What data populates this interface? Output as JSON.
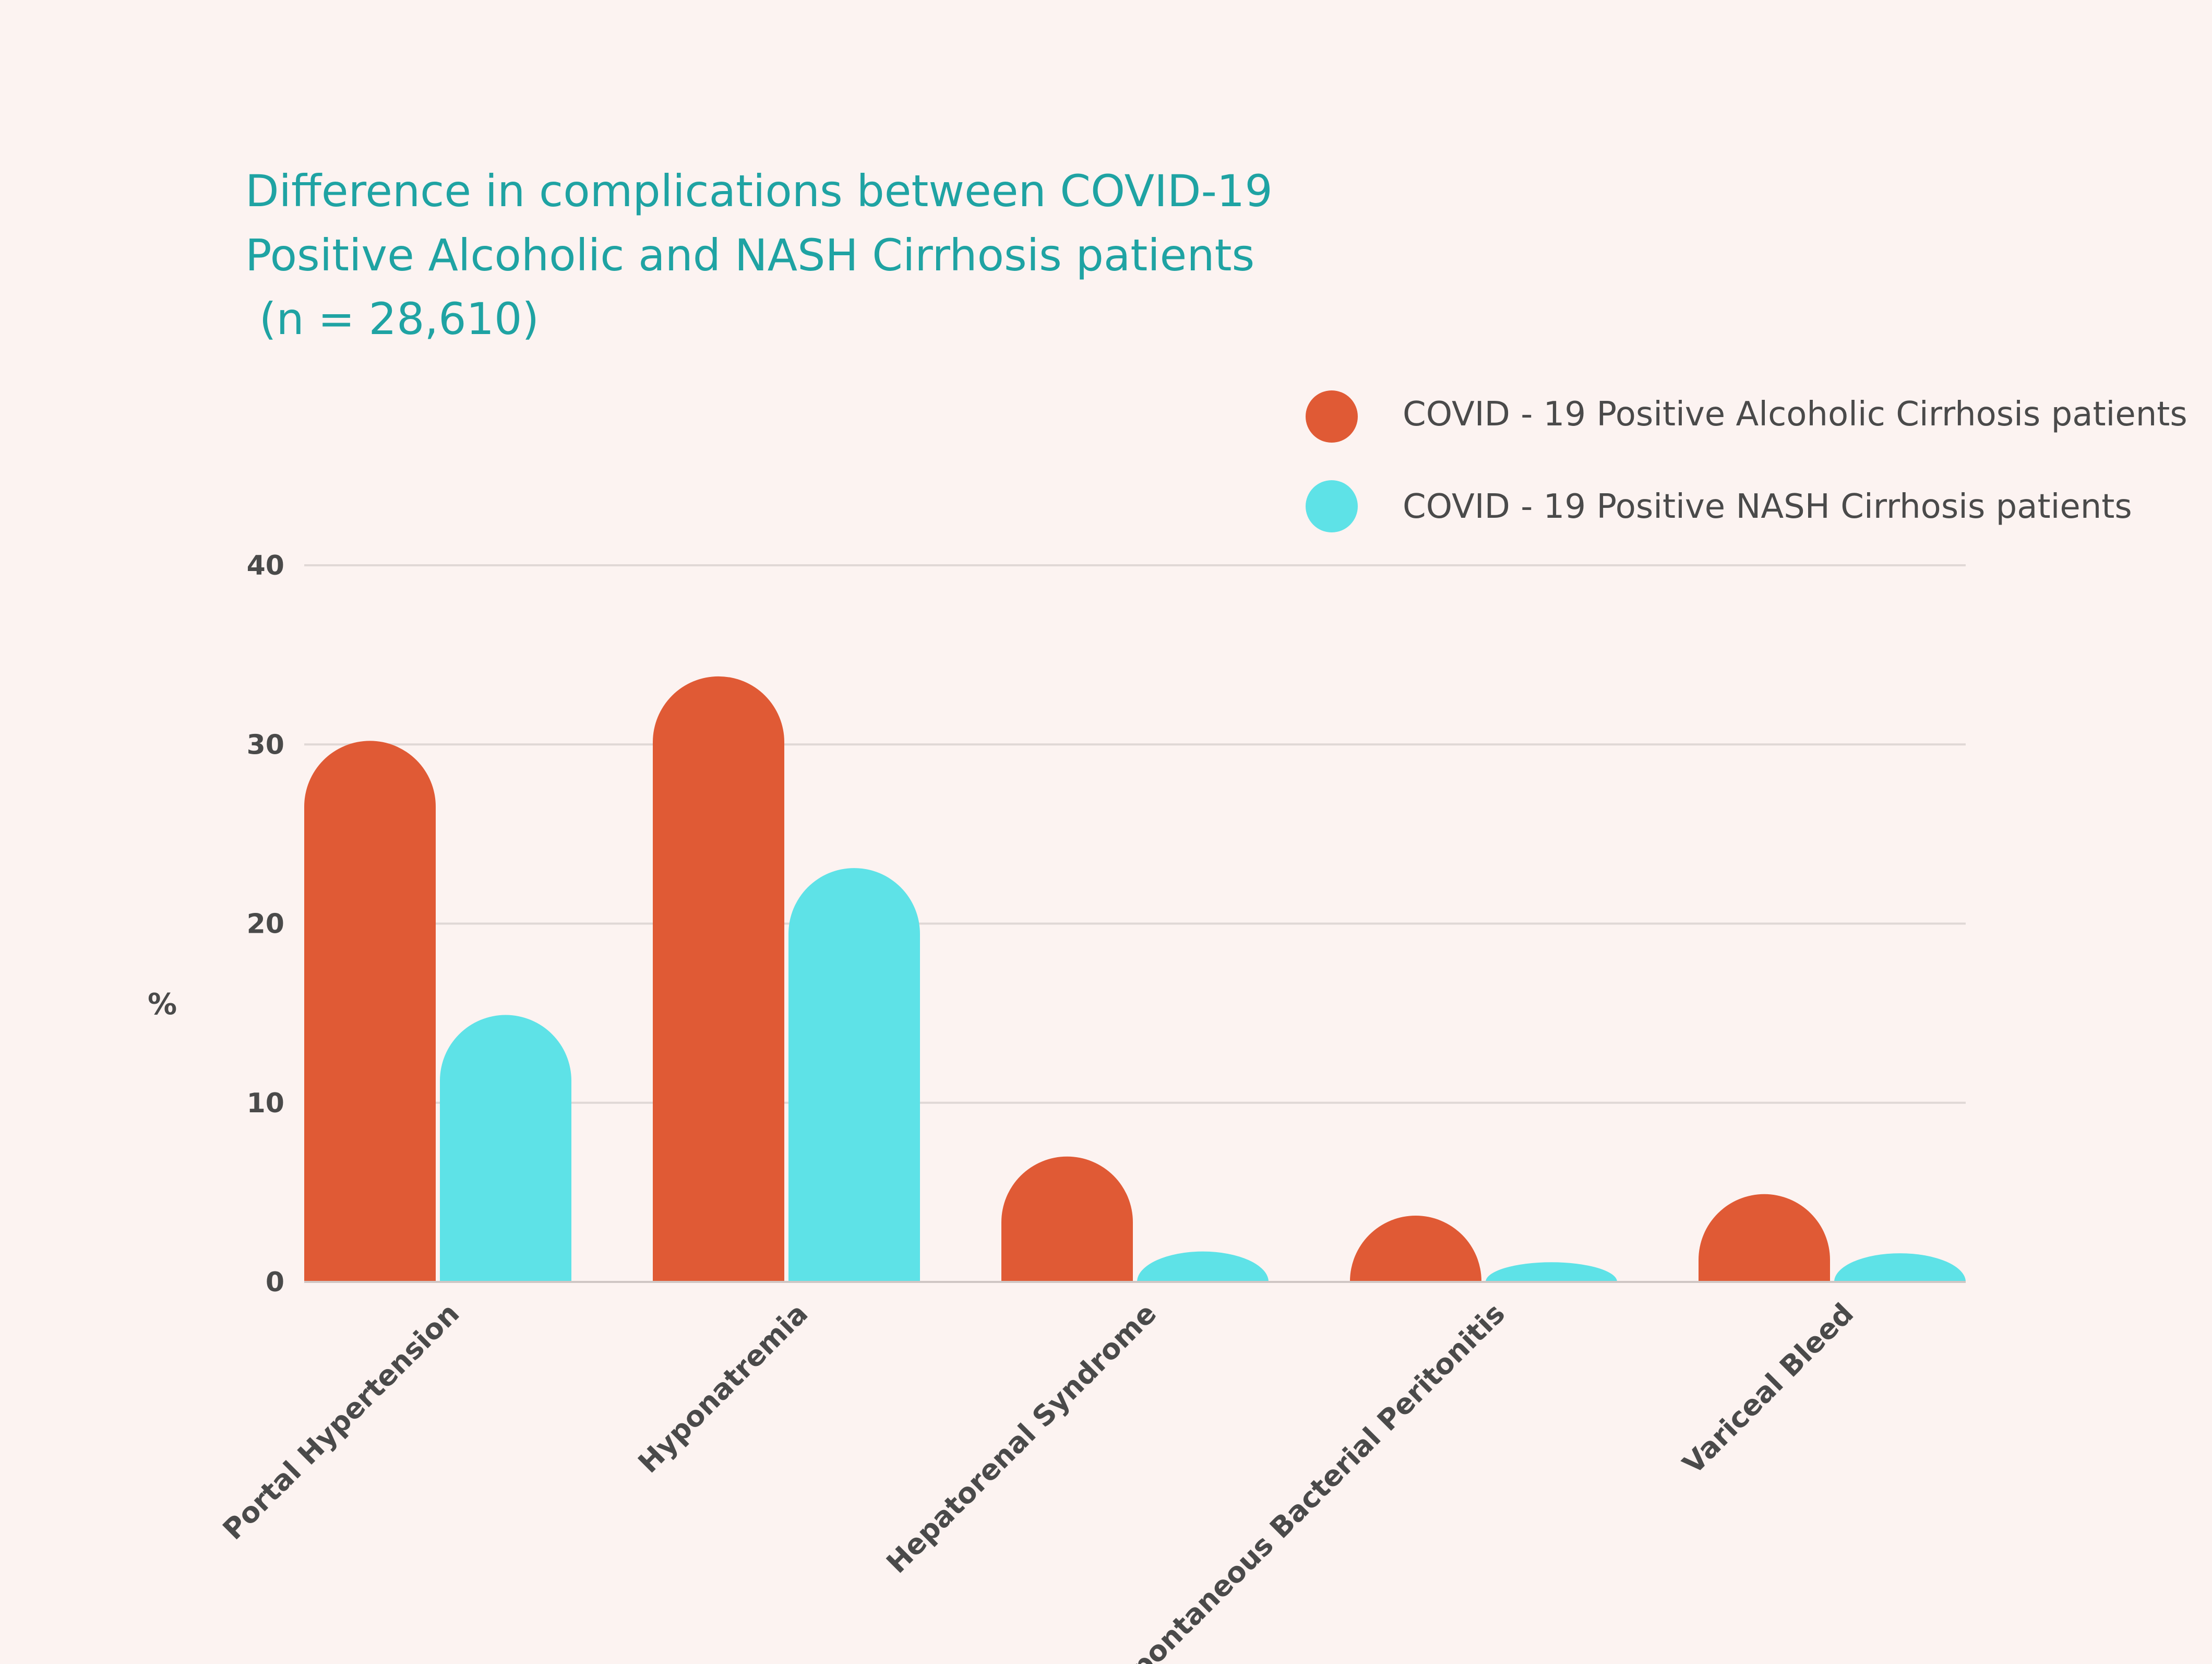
{
  "chart_data": {
    "type": "bar",
    "title_lines": [
      "Difference  in complications between COVID-19",
      "Positive Alcoholic and NASH Cirrhosis patients",
      " (n = 28,610)"
    ],
    "ylabel": "%",
    "xlabel": "",
    "ylim": [
      0,
      40
    ],
    "yticks": [
      0,
      10,
      20,
      30,
      40
    ],
    "grid": true,
    "legend_position": "top-right",
    "categories": [
      "Portal Hypertension",
      "Hyponatremia",
      "Hepatorenal Syndrome",
      "Spontaneous Bacterial Peritonitis",
      "Variceal Bleed"
    ],
    "series": [
      {
        "name": "COVID - 19 Positive Alcoholic Cirrhosis patients",
        "color": "#e05a35",
        "values": [
          30.2,
          33.8,
          7.0,
          3.7,
          4.9
        ]
      },
      {
        "name": "COVID - 19 Positive NASH Cirrhosis patients",
        "color": "#5ee2e7",
        "values": [
          14.9,
          23.1,
          1.7,
          1.1,
          1.6
        ]
      }
    ],
    "colors": {
      "title": "#1fa3a3",
      "text": "#4a4a4a",
      "grid": "#e0d8d6",
      "background": "#fcf3f1"
    }
  }
}
